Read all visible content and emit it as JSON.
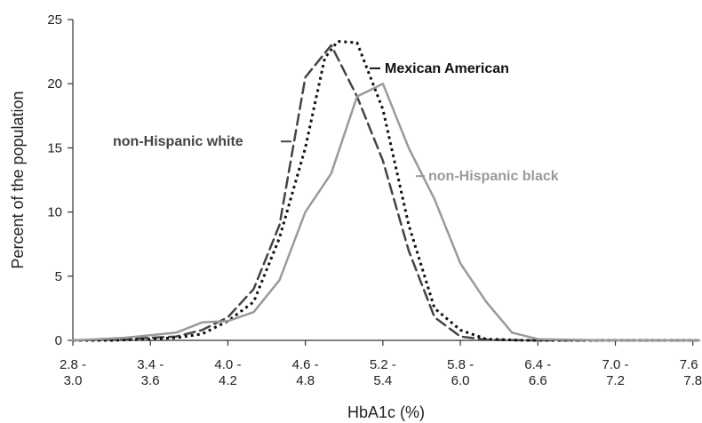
{
  "chart_data": {
    "type": "line",
    "xlabel": "HbA1c (%)",
    "ylabel": "Percent of the population",
    "ylim": [
      0,
      25
    ],
    "yticks": [
      "0",
      "5",
      "10",
      "15",
      "20",
      "25"
    ],
    "x_ticks": [
      {
        "x": 2.9,
        "line1": "2.8 -",
        "line2": "3.0"
      },
      {
        "x": 3.5,
        "line1": "3.4 -",
        "line2": "3.6"
      },
      {
        "x": 4.1,
        "line1": "4.0 -",
        "line2": "4.2"
      },
      {
        "x": 4.7,
        "line1": "4.6 -",
        "line2": "4.8"
      },
      {
        "x": 5.3,
        "line1": "5.2 -",
        "line2": "5.4"
      },
      {
        "x": 5.9,
        "line1": "5.8 -",
        "line2": "6.0"
      },
      {
        "x": 6.5,
        "line1": "6.4 -",
        "line2": "6.6"
      },
      {
        "x": 7.1,
        "line1": "7.0 -",
        "line2": "7.2"
      },
      {
        "x": 7.7,
        "line1": "7.6 -",
        "line2": "7.8"
      }
    ],
    "xlim": [
      2.9,
      7.75
    ],
    "grid": false,
    "series": [
      {
        "name": "non-Hispanic white",
        "color": "#444444",
        "style": "dashed",
        "points": [
          [
            2.9,
            0
          ],
          [
            3.1,
            0.05
          ],
          [
            3.3,
            0.1
          ],
          [
            3.5,
            0.2
          ],
          [
            3.7,
            0.3
          ],
          [
            3.9,
            0.8
          ],
          [
            4.1,
            1.8
          ],
          [
            4.3,
            4
          ],
          [
            4.5,
            9
          ],
          [
            4.7,
            20.5
          ],
          [
            4.9,
            23
          ],
          [
            5.1,
            19
          ],
          [
            5.3,
            14
          ],
          [
            5.5,
            7
          ],
          [
            5.7,
            1.8
          ],
          [
            5.9,
            0.3
          ],
          [
            6.1,
            0.05
          ],
          [
            6.4,
            0
          ],
          [
            7.75,
            0
          ]
        ]
      },
      {
        "name": "Mexican American",
        "color": "#111111",
        "style": "dotted",
        "points": [
          [
            2.9,
            0
          ],
          [
            3.2,
            0
          ],
          [
            3.5,
            0.1
          ],
          [
            3.7,
            0.2
          ],
          [
            3.9,
            0.5
          ],
          [
            4.1,
            1.5
          ],
          [
            4.3,
            3
          ],
          [
            4.5,
            8
          ],
          [
            4.7,
            15
          ],
          [
            4.85,
            22
          ],
          [
            4.95,
            23.3
          ],
          [
            5.1,
            23.2
          ],
          [
            5.3,
            18
          ],
          [
            5.5,
            9
          ],
          [
            5.7,
            2.5
          ],
          [
            5.9,
            0.8
          ],
          [
            6.1,
            0.1
          ],
          [
            6.4,
            0
          ],
          [
            7.75,
            0
          ]
        ]
      },
      {
        "name": "non-Hispanic black",
        "color": "#9a9a9a",
        "style": "solid",
        "points": [
          [
            2.9,
            0
          ],
          [
            3.1,
            0.1
          ],
          [
            3.3,
            0.2
          ],
          [
            3.5,
            0.4
          ],
          [
            3.7,
            0.6
          ],
          [
            3.9,
            1.4
          ],
          [
            4.1,
            1.5
          ],
          [
            4.3,
            2.2
          ],
          [
            4.5,
            4.7
          ],
          [
            4.7,
            10
          ],
          [
            4.9,
            13
          ],
          [
            5.1,
            19
          ],
          [
            5.3,
            20
          ],
          [
            5.5,
            15
          ],
          [
            5.7,
            11
          ],
          [
            5.9,
            6
          ],
          [
            6.1,
            3
          ],
          [
            6.3,
            0.6
          ],
          [
            6.5,
            0.1
          ],
          [
            7,
            0
          ],
          [
            7.75,
            0
          ]
        ]
      }
    ],
    "annotations": [
      {
        "text": "non-Hispanic white",
        "series": 0
      },
      {
        "text": "Mexican American",
        "series": 1
      },
      {
        "text": "non-Hispanic black",
        "series": 2
      }
    ]
  }
}
